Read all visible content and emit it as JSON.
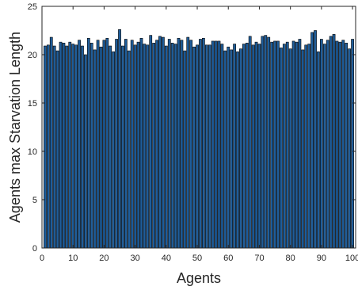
{
  "chart_data": {
    "type": "bar",
    "title": "",
    "xlabel": "Agents",
    "ylabel": "Agents max Starvation Length",
    "xlim": [
      0,
      101
    ],
    "ylim": [
      0,
      25
    ],
    "xticks": [
      0,
      10,
      20,
      30,
      40,
      50,
      60,
      70,
      80,
      90,
      100
    ],
    "xtick_labels": [
      "0",
      "10",
      "20",
      "30",
      "40",
      "50",
      "60",
      "70",
      "80",
      "90",
      "100"
    ],
    "yticks": [
      0,
      5,
      10,
      15,
      20,
      25
    ],
    "ytick_labels": [
      "0",
      "5",
      "10",
      "15",
      "20",
      "25"
    ],
    "grid": false,
    "bar_color": "#1f5d9a",
    "edge_color": "#000000",
    "x": [
      1,
      2,
      3,
      4,
      5,
      6,
      7,
      8,
      9,
      10,
      11,
      12,
      13,
      14,
      15,
      16,
      17,
      18,
      19,
      20,
      21,
      22,
      23,
      24,
      25,
      26,
      27,
      28,
      29,
      30,
      31,
      32,
      33,
      34,
      35,
      36,
      37,
      38,
      39,
      40,
      41,
      42,
      43,
      44,
      45,
      46,
      47,
      48,
      49,
      50,
      51,
      52,
      53,
      54,
      55,
      56,
      57,
      58,
      59,
      60,
      61,
      62,
      63,
      64,
      65,
      66,
      67,
      68,
      69,
      70,
      71,
      72,
      73,
      74,
      75,
      76,
      77,
      78,
      79,
      80,
      81,
      82,
      83,
      84,
      85,
      86,
      87,
      88,
      89,
      90,
      91,
      92,
      93,
      94,
      95,
      96,
      97,
      98,
      99,
      100
    ],
    "values": [
      20.9,
      21.0,
      21.8,
      20.9,
      20.4,
      21.3,
      21.2,
      20.9,
      21.3,
      21.1,
      21.0,
      21.5,
      20.9,
      20.0,
      21.7,
      21.2,
      20.5,
      21.5,
      20.8,
      21.5,
      21.7,
      20.9,
      20.3,
      21.6,
      22.6,
      20.9,
      21.6,
      20.4,
      21.5,
      21.0,
      21.3,
      21.7,
      21.1,
      21.0,
      22.0,
      21.2,
      21.5,
      21.9,
      21.8,
      20.9,
      21.6,
      21.2,
      21.1,
      21.7,
      21.5,
      20.4,
      21.8,
      21.5,
      20.8,
      21.0,
      21.6,
      21.7,
      21.0,
      21.0,
      21.4,
      21.4,
      21.4,
      21.1,
      20.4,
      20.8,
      20.5,
      21.1,
      20.3,
      20.6,
      21.1,
      21.2,
      21.9,
      21.0,
      21.3,
      21.1,
      21.9,
      22.0,
      21.8,
      21.3,
      21.4,
      21.4,
      20.7,
      21.1,
      21.3,
      20.6,
      21.4,
      21.3,
      21.6,
      20.5,
      21.0,
      21.1,
      22.3,
      22.5,
      20.3,
      21.6,
      21.1,
      21.5,
      21.9,
      22.1,
      21.4,
      21.3,
      21.5,
      21.2,
      20.6,
      21.6
    ]
  }
}
